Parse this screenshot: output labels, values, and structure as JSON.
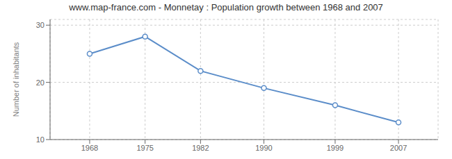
{
  "chart_data": {
    "type": "line",
    "title": "www.map-france.com - Monnetay : Population growth between 1968 and 2007",
    "ylabel": "Number of inhabitants",
    "x": [
      1968,
      1975,
      1982,
      1990,
      1999,
      2007
    ],
    "values": [
      25,
      28,
      22,
      19,
      16,
      13
    ],
    "color": "#5b8dc9",
    "marker": "circle",
    "xlim": [
      1963,
      2012
    ],
    "xticks": [
      1968,
      1975,
      1982,
      1990,
      1999,
      2007
    ],
    "ylim": [
      10,
      31
    ],
    "yticks": [
      10,
      20,
      30
    ],
    "grid": true
  }
}
